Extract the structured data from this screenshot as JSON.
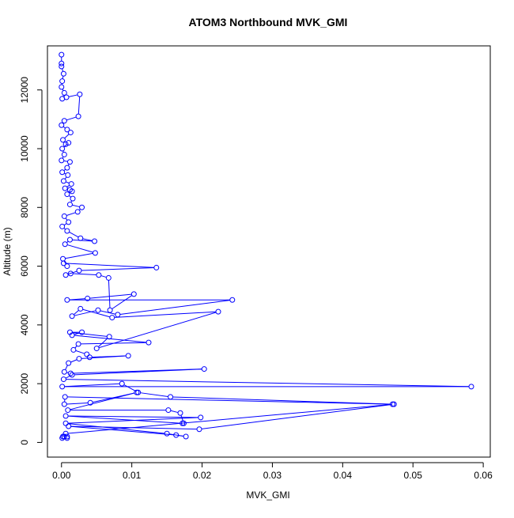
{
  "chart_data": {
    "type": "line",
    "title": "ATOM3 Northbound MVK_GMI",
    "xlabel": "MVK_GMI",
    "ylabel": "Altitude (m)",
    "xlim": [
      -0.002,
      0.061
    ],
    "ylim": [
      -500,
      13500
    ],
    "xticks": [
      0.0,
      0.01,
      0.02,
      0.03,
      0.04,
      0.05,
      0.06
    ],
    "xtick_labels": [
      "0.00",
      "0.01",
      "0.02",
      "0.03",
      "0.04",
      "0.05",
      "0.06"
    ],
    "yticks": [
      0,
      2000,
      4000,
      6000,
      8000,
      10000,
      12000
    ],
    "ytick_labels": [
      "0",
      "2000",
      "4000",
      "6000",
      "8000",
      "10000",
      "12000"
    ],
    "grid": false,
    "marker": "open-circle",
    "line_color": "#0000ff",
    "series": [
      {
        "points": [
          [
            0.0,
            13200
          ],
          [
            0.0,
            12900
          ],
          [
            0.0,
            12800
          ],
          [
            0.0003,
            12550
          ],
          [
            0.0001,
            12300
          ],
          [
            0.0,
            12100
          ],
          [
            0.0004,
            11900
          ],
          [
            0.0001,
            11700
          ],
          [
            0.0007,
            11750
          ],
          [
            0.0026,
            11850
          ],
          [
            0.0024,
            11100
          ],
          [
            0.0004,
            10950
          ],
          [
            0.0,
            10800
          ],
          [
            0.0008,
            10650
          ],
          [
            0.0013,
            10550
          ],
          [
            0.0002,
            10300
          ],
          [
            0.0006,
            10150
          ],
          [
            0.001,
            10200
          ],
          [
            0.0001,
            10000
          ],
          [
            0.0004,
            9800
          ],
          [
            0.0,
            9600
          ],
          [
            0.0012,
            9550
          ],
          [
            0.0008,
            9350
          ],
          [
            0.0001,
            9200
          ],
          [
            0.0009,
            9100
          ],
          [
            0.0003,
            8900
          ],
          [
            0.0014,
            8800
          ],
          [
            0.0005,
            8650
          ],
          [
            0.0012,
            8600
          ],
          [
            0.0015,
            8550
          ],
          [
            0.0008,
            8450
          ],
          [
            0.0016,
            8300
          ],
          [
            0.0012,
            8100
          ],
          [
            0.0029,
            8000
          ],
          [
            0.0023,
            7850
          ],
          [
            0.0004,
            7700
          ],
          [
            0.001,
            7500
          ],
          [
            0.0001,
            7350
          ],
          [
            0.0008,
            7200
          ],
          [
            0.0027,
            6950
          ],
          [
            0.0047,
            6850
          ],
          [
            0.0012,
            6900
          ],
          [
            0.0005,
            6750
          ],
          [
            0.0048,
            6450
          ],
          [
            0.0002,
            6250
          ],
          [
            0.0008,
            6000
          ],
          [
            0.0003,
            6100
          ],
          [
            0.0135,
            5950
          ],
          [
            0.0025,
            5850
          ],
          [
            0.0006,
            5700
          ],
          [
            0.0013,
            5750
          ],
          [
            0.0053,
            5700
          ],
          [
            0.0067,
            5600
          ],
          [
            0.0069,
            4500
          ],
          [
            0.0103,
            5050
          ],
          [
            0.0037,
            4900
          ],
          [
            0.0008,
            4850
          ],
          [
            0.0243,
            4850
          ],
          [
            0.008,
            4350
          ],
          [
            0.0052,
            4500
          ],
          [
            0.0015,
            4300
          ],
          [
            0.0027,
            4550
          ],
          [
            0.0072,
            4250
          ],
          [
            0.0223,
            4450
          ],
          [
            0.005,
            3200
          ],
          [
            0.0068,
            3600
          ],
          [
            0.0012,
            3750
          ],
          [
            0.0029,
            3750
          ],
          [
            0.0015,
            3650
          ],
          [
            0.0124,
            3400
          ],
          [
            0.0024,
            3350
          ],
          [
            0.0017,
            3150
          ],
          [
            0.0036,
            3000
          ],
          [
            0.004,
            2900
          ],
          [
            0.0095,
            2950
          ],
          [
            0.0025,
            2850
          ],
          [
            0.001,
            2700
          ],
          [
            0.0004,
            2400
          ],
          [
            0.0013,
            2350
          ],
          [
            0.0203,
            2500
          ],
          [
            0.0015,
            2300
          ],
          [
            0.0003,
            2150
          ],
          [
            0.0583,
            1900
          ],
          [
            0.0001,
            1900
          ],
          [
            0.0086,
            2000
          ],
          [
            0.0109,
            1700
          ],
          [
            0.0155,
            1550
          ],
          [
            0.0471,
            1300
          ],
          [
            0.0005,
            1550
          ],
          [
            0.0004,
            1300
          ],
          [
            0.0041,
            1350
          ],
          [
            0.0107,
            1700
          ],
          [
            0.0009,
            1100
          ],
          [
            0.0152,
            1100
          ],
          [
            0.0169,
            1000
          ],
          [
            0.0174,
            650
          ],
          [
            0.0172,
            650
          ],
          [
            0.0006,
            900
          ],
          [
            0.0198,
            850
          ],
          [
            0.0006,
            650
          ],
          [
            0.015,
            300
          ],
          [
            0.0177,
            200
          ],
          [
            0.0163,
            250
          ],
          [
            0.001,
            550
          ],
          [
            0.0196,
            450
          ],
          [
            0.0473,
            1300
          ],
          [
            0.0006,
            300
          ],
          [
            0.0004,
            200
          ],
          [
            0.0008,
            150
          ],
          [
            0.0002,
            200
          ],
          [
            0.0008,
            200
          ],
          [
            0.0001,
            150
          ]
        ]
      }
    ]
  }
}
